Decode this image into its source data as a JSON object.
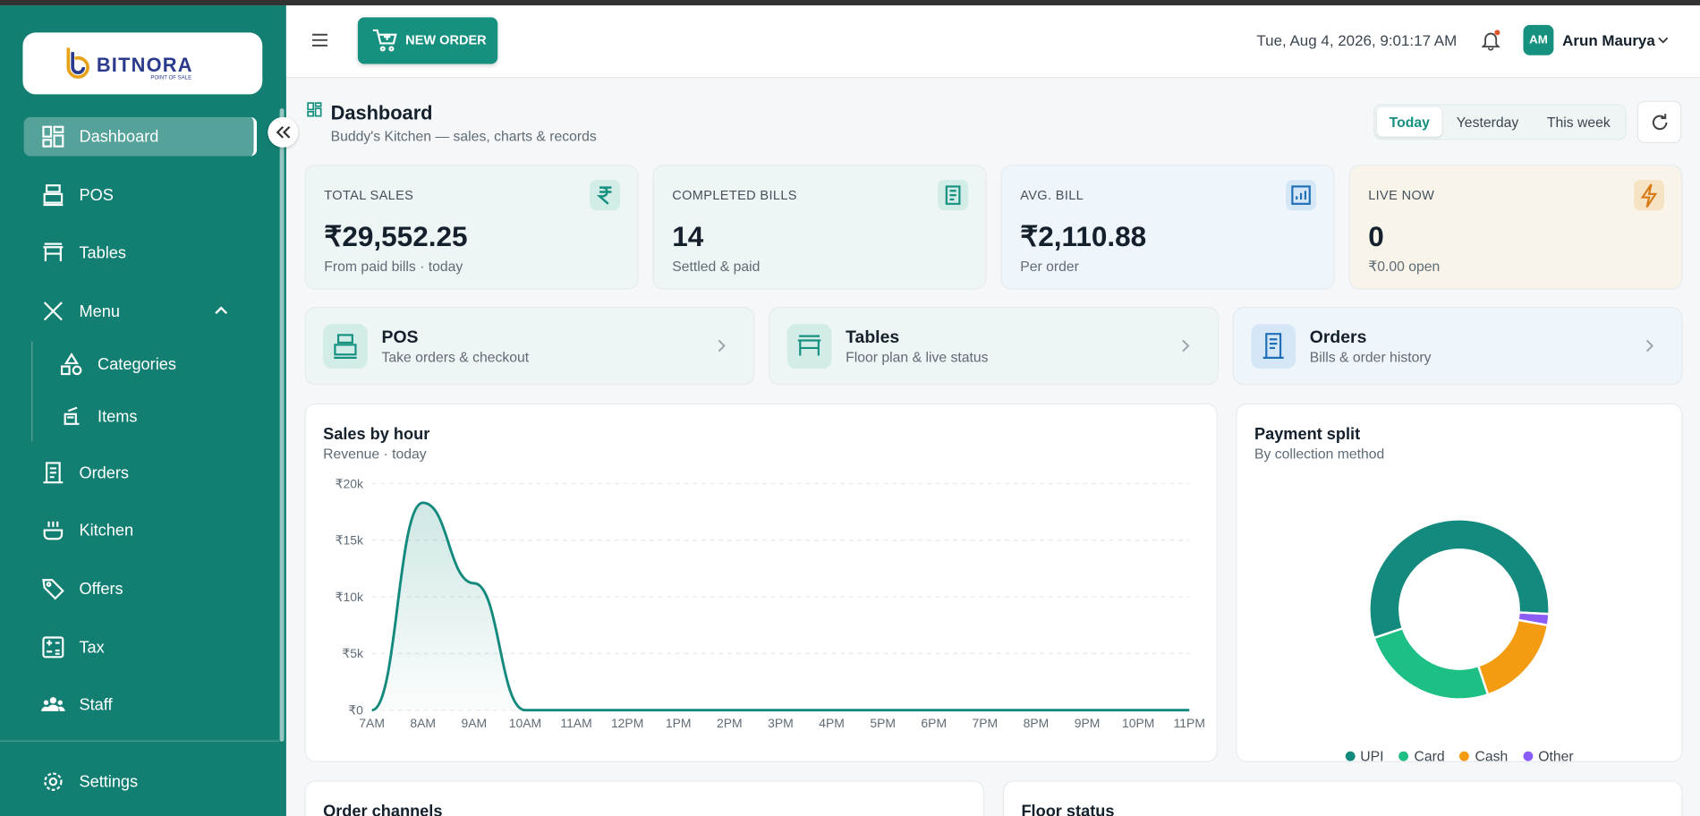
{
  "sidebar": {
    "logo": "BITNORA",
    "logo_sub": "POINT OF SALE",
    "nav": [
      "Dashboard",
      "POS",
      "Tables",
      "Menu",
      "Categories",
      "Items",
      "Orders",
      "Kitchen",
      "Offers",
      "Tax",
      "Staff"
    ],
    "settings": "Settings"
  },
  "header": {
    "new_order": "NEW ORDER",
    "datetime": "Tue, Aug 4, 2026, 9:01:17 AM",
    "avatar": "AM",
    "user": "Arun Maurya"
  },
  "page": {
    "title": "Dashboard",
    "subtitle": "Buddy's Kitchen — sales, charts & records",
    "ranges": [
      "Today",
      "Yesterday",
      "This week"
    ]
  },
  "stats": [
    {
      "label": "TOTAL SALES",
      "value": "₹29,552.25",
      "note": "From paid bills · today"
    },
    {
      "label": "COMPLETED BILLS",
      "value": "14",
      "note": "Settled & paid"
    },
    {
      "label": "AVG. BILL",
      "value": "₹2,110.88",
      "note": "Per order"
    },
    {
      "label": "LIVE NOW",
      "value": "0",
      "note": "₹0.00 open"
    }
  ],
  "shortcuts": [
    {
      "title": "POS",
      "subtitle": "Take orders & checkout"
    },
    {
      "title": "Tables",
      "subtitle": "Floor plan & live status"
    },
    {
      "title": "Orders",
      "subtitle": "Bills & order history"
    }
  ],
  "sales_chart": {
    "type": "line",
    "title": "Sales by hour",
    "subtitle": "Revenue · today",
    "categories": [
      "7AM",
      "8AM",
      "9AM",
      "10AM",
      "11AM",
      "12PM",
      "1PM",
      "2PM",
      "3PM",
      "4PM",
      "5PM",
      "6PM",
      "7PM",
      "8PM",
      "9PM",
      "10PM",
      "11PM"
    ],
    "values": [
      0,
      18300,
      11200,
      0,
      0,
      0,
      0,
      0,
      0,
      0,
      0,
      0,
      0,
      0,
      0,
      0,
      0
    ],
    "color": "#138a7d",
    "ylim": [
      0,
      20000
    ],
    "yticks": [
      {
        "value": 0,
        "label": "₹0"
      },
      {
        "value": 5000,
        "label": "₹5k"
      },
      {
        "value": 10000,
        "label": "₹10k"
      },
      {
        "value": 15000,
        "label": "₹15k"
      },
      {
        "value": 20000,
        "label": "₹20k"
      }
    ],
    "grid": true
  },
  "payment_chart": {
    "type": "pie",
    "title": "Payment split",
    "subtitle": "By collection method",
    "categories": [
      "UPI",
      "Card",
      "Cash",
      "Other"
    ],
    "values": [
      56,
      25,
      17,
      2
    ],
    "colors": [
      "#138a7d",
      "#1dbf84",
      "#f39c12",
      "#8b5cf6"
    ]
  },
  "bottom": {
    "left_title": "Order channels",
    "right_title": "Floor status"
  }
}
